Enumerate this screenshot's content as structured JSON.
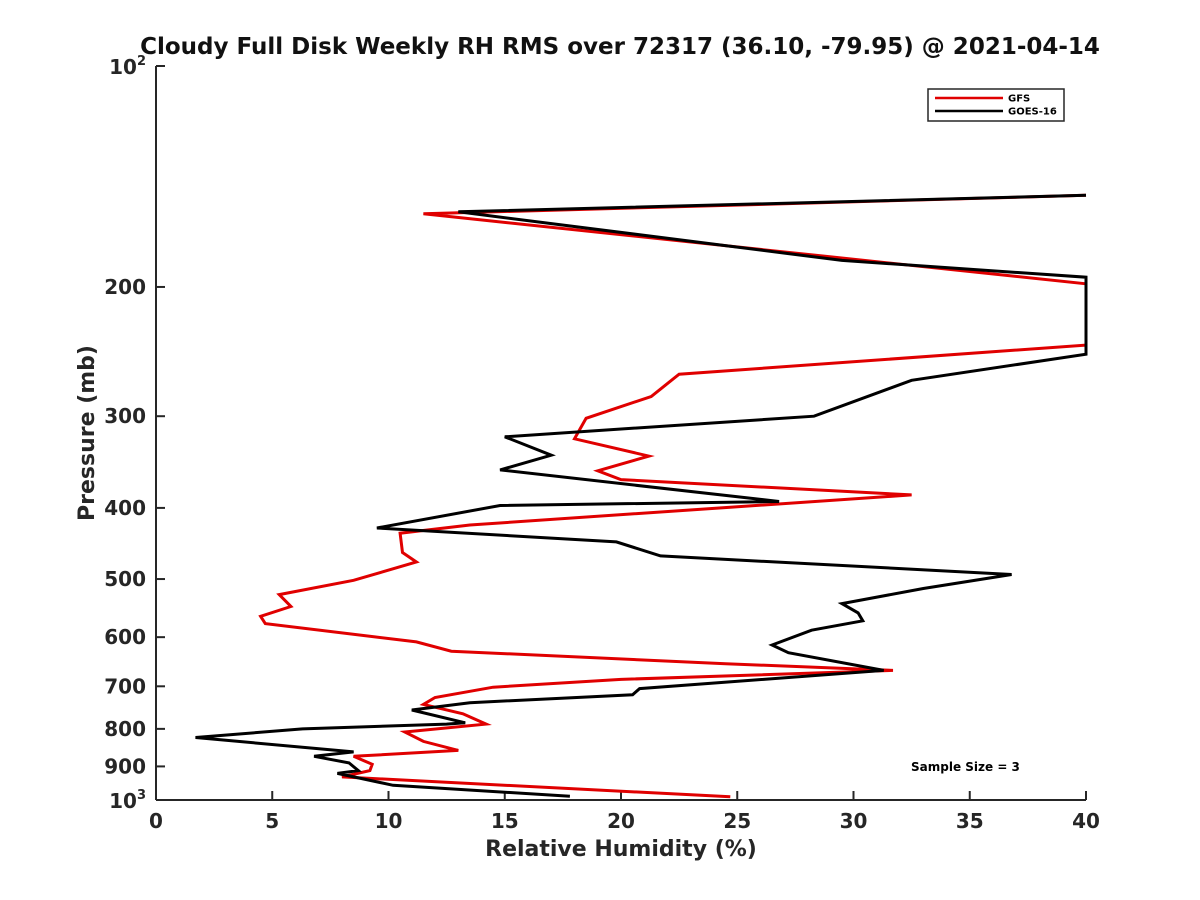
{
  "chart_data": {
    "type": "line",
    "title": "Cloudy Full Disk Weekly RH RMS over 72317 (36.10, -79.95) @ 2021-04-14",
    "xlabel": "Relative Humidity (%)",
    "ylabel": "Pressure (mb)",
    "xlim": [
      0,
      40
    ],
    "ylim": [
      100,
      1000
    ],
    "yscale": "log",
    "y_reversed": true,
    "grid": false,
    "legend_position": "top-right",
    "x_ticks": [
      "0",
      "5",
      "10",
      "15",
      "20",
      "25",
      "30",
      "35",
      "40"
    ],
    "y_ticks": [
      {
        "value": 100,
        "base": "10",
        "exp": "2"
      },
      {
        "value": 200,
        "label": "200"
      },
      {
        "value": 300,
        "label": "300"
      },
      {
        "value": 400,
        "label": "400"
      },
      {
        "value": 500,
        "label": "500"
      },
      {
        "value": 600,
        "label": "600"
      },
      {
        "value": 700,
        "label": "700"
      },
      {
        "value": 800,
        "label": "800"
      },
      {
        "value": 900,
        "label": "900"
      },
      {
        "value": 1000,
        "base": "10",
        "exp": "3"
      }
    ],
    "annotation": "Sample Size = 3",
    "series": [
      {
        "name": "GFS",
        "color": "#e00000",
        "points": [
          [
            40,
            150
          ],
          [
            11.5,
            159
          ],
          [
            40,
            198
          ],
          [
            40,
            240
          ],
          [
            22.5,
            263
          ],
          [
            21.3,
            282
          ],
          [
            18.5,
            302
          ],
          [
            18.0,
            322
          ],
          [
            21.2,
            340
          ],
          [
            19.0,
            356
          ],
          [
            20.0,
            366
          ],
          [
            32.5,
            384
          ],
          [
            13.5,
            422
          ],
          [
            10.5,
            433
          ],
          [
            10.6,
            460
          ],
          [
            11.2,
            474
          ],
          [
            8.5,
            502
          ],
          [
            5.3,
            525
          ],
          [
            5.8,
            545
          ],
          [
            4.5,
            562
          ],
          [
            4.7,
            575
          ],
          [
            11.2,
            609
          ],
          [
            12.7,
            627
          ],
          [
            24.5,
            652
          ],
          [
            31.7,
            666
          ],
          [
            20.0,
            685
          ],
          [
            14.5,
            702
          ],
          [
            12.0,
            725
          ],
          [
            11.5,
            741
          ],
          [
            13.2,
            763
          ],
          [
            14.2,
            788
          ],
          [
            10.7,
            808
          ],
          [
            11.5,
            832
          ],
          [
            13.0,
            856
          ],
          [
            8.5,
            872
          ],
          [
            9.3,
            894
          ],
          [
            9.2,
            912
          ],
          [
            8.0,
            930
          ],
          [
            24.7,
            990
          ]
        ]
      },
      {
        "name": "GOES-16",
        "color": "#000000",
        "points": [
          [
            40,
            150
          ],
          [
            13.0,
            158
          ],
          [
            29.5,
            184
          ],
          [
            40,
            194
          ],
          [
            40,
            247
          ],
          [
            32.5,
            268
          ],
          [
            28.3,
            300
          ],
          [
            15.0,
            320
          ],
          [
            17.0,
            339
          ],
          [
            14.8,
            355
          ],
          [
            26.8,
            392
          ],
          [
            14.8,
            397
          ],
          [
            9.5,
            426
          ],
          [
            19.8,
            445
          ],
          [
            21.7,
            465
          ],
          [
            36.8,
            493
          ],
          [
            33.0,
            515
          ],
          [
            29.5,
            540
          ],
          [
            30.2,
            556
          ],
          [
            30.4,
            570
          ],
          [
            28.2,
            587
          ],
          [
            26.5,
            615
          ],
          [
            27.2,
            630
          ],
          [
            31.3,
            666
          ],
          [
            20.8,
            705
          ],
          [
            20.5,
            719
          ],
          [
            13.5,
            737
          ],
          [
            11.0,
            754
          ],
          [
            13.3,
            785
          ],
          [
            12.5,
            788
          ],
          [
            6.3,
            800
          ],
          [
            1.7,
            822
          ],
          [
            8.5,
            860
          ],
          [
            6.8,
            872
          ],
          [
            8.3,
            890
          ],
          [
            8.7,
            912
          ],
          [
            7.8,
            920
          ],
          [
            10.2,
            955
          ],
          [
            17.8,
            988
          ]
        ]
      }
    ]
  }
}
